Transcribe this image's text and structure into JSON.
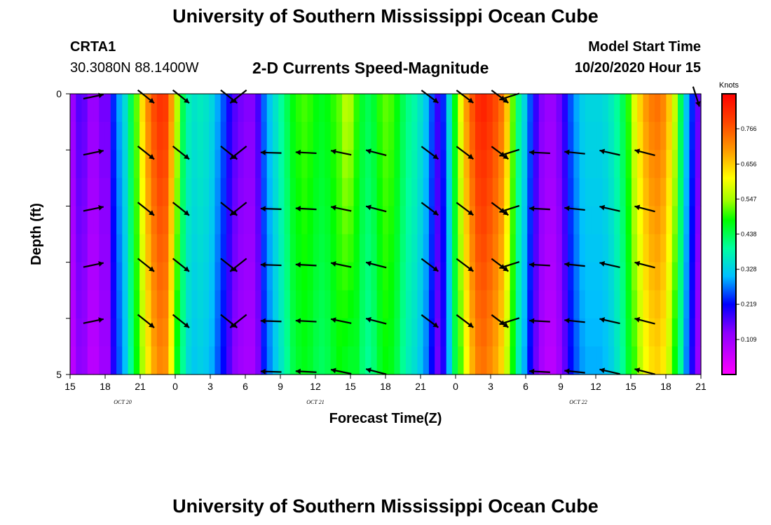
{
  "header": {
    "main_title": "University of Southern Mississippi Ocean Cube",
    "station_id": "CRTA1",
    "station_coords": "30.3080N 88.1400W",
    "plot_title": "2-D Currents Speed-Magnitude",
    "model_start_label": "Model Start Time",
    "model_start_value": "10/20/2020 Hour 15",
    "bottom_title": "University of Southern Mississippi Ocean Cube"
  },
  "chart_data": {
    "type": "heatmap",
    "title": "2-D Currents Speed-Magnitude",
    "xlabel": "Forecast Time(Z)",
    "ylabel": "Depth (ft)",
    "x_tick_labels": [
      "15",
      "18",
      "21",
      "0",
      "3",
      "6",
      "9",
      "12",
      "15",
      "18",
      "21",
      "0",
      "3",
      "6",
      "9",
      "12",
      "15",
      "18",
      "21"
    ],
    "x_hours": [
      0,
      3,
      6,
      9,
      12,
      15,
      18,
      21,
      24,
      27,
      30,
      33,
      36,
      39,
      42,
      45,
      48,
      51,
      54
    ],
    "date_labels": [
      {
        "text": "OCT 20",
        "hour": 4.5
      },
      {
        "text": "OCT 21",
        "hour": 21
      },
      {
        "text": "OCT 22",
        "hour": 43.5
      }
    ],
    "y_tick_labels": [
      {
        "value": 0,
        "text": "0"
      },
      {
        "value": 5,
        "text": "5"
      }
    ],
    "ylim": [
      0,
      5
    ],
    "y_inverted": true,
    "xlim_hours": [
      0,
      54
    ],
    "colorbar": {
      "label": "Knots",
      "ticks": [
        "0.766",
        "0.656",
        "0.547",
        "0.438",
        "0.328",
        "0.219",
        "0.109"
      ],
      "range": [
        0,
        0.875
      ]
    },
    "speed_by_hour": [
      0.1,
      0.15,
      0.14,
      0.1,
      0.1,
      0.13,
      0.13,
      0.22,
      0.28,
      0.33,
      0.42,
      0.5,
      0.6,
      0.68,
      0.74,
      0.77,
      0.76,
      0.66,
      0.52,
      0.42,
      0.36,
      0.34,
      0.35,
      0.34,
      0.32,
      0.28,
      0.24,
      0.19,
      0.15,
      0.13,
      0.12,
      0.12,
      0.16,
      0.25,
      0.3,
      0.34,
      0.38,
      0.42,
      0.46,
      0.48,
      0.49,
      0.48,
      0.46,
      0.45,
      0.46,
      0.48,
      0.5,
      0.52,
      0.51,
      0.48,
      0.44,
      0.42,
      0.44,
      0.48,
      0.5,
      0.49,
      0.46,
      0.42,
      0.39,
      0.37,
      0.34,
      0.3,
      0.24,
      0.17,
      0.22,
      0.33,
      0.46,
      0.56,
      0.66,
      0.73,
      0.78,
      0.79,
      0.77,
      0.74,
      0.7,
      0.62,
      0.5,
      0.39,
      0.32,
      0.24,
      0.17,
      0.12,
      0.1,
      0.1,
      0.13,
      0.18,
      0.24,
      0.28,
      0.31,
      0.32,
      0.32,
      0.32,
      0.33,
      0.35,
      0.38,
      0.42,
      0.48,
      0.55,
      0.61,
      0.66,
      0.69,
      0.7,
      0.68,
      0.62,
      0.53,
      0.42,
      0.3,
      0.22,
      0.14
    ],
    "speed_depth_taper": [
      0.04,
      0.03,
      0.02,
      0.01,
      0.0,
      -0.01,
      -0.02,
      -0.03,
      -0.04,
      -0.05
    ],
    "vector_rows_depth": [
      0.05,
      1.05,
      2.05,
      3.05,
      4.05,
      4.95
    ],
    "vector_columns": [
      {
        "hour": 2.0,
        "dir": [
          0.96,
          -0.2
        ],
        "rows": [
          0,
          1,
          2,
          3,
          4
        ]
      },
      {
        "hour": 6.5,
        "dir": [
          0.78,
          0.62
        ],
        "rows": [
          0,
          1,
          2,
          3,
          4
        ]
      },
      {
        "hour": 9.5,
        "dir": [
          0.78,
          0.62
        ],
        "rows": [
          0,
          1,
          2,
          3,
          4
        ]
      },
      {
        "hour": 13.6,
        "dir": [
          0.78,
          0.62
        ],
        "rows": [
          0,
          1,
          2,
          3,
          4
        ]
      },
      {
        "hour": 14.4,
        "dir": [
          -0.78,
          0.62
        ],
        "rows": [
          0,
          1,
          2,
          3,
          4
        ]
      },
      {
        "hour": 17.2,
        "dir": [
          -0.99,
          -0.03
        ],
        "rows": [
          1,
          2,
          3,
          4,
          5
        ]
      },
      {
        "hour": 20.2,
        "dir": [
          -0.99,
          -0.05
        ],
        "rows": [
          1,
          2,
          3,
          4,
          5
        ]
      },
      {
        "hour": 23.2,
        "dir": [
          -0.97,
          -0.2
        ],
        "rows": [
          1,
          2,
          3,
          4,
          5
        ]
      },
      {
        "hour": 26.2,
        "dir": [
          -0.97,
          -0.25
        ],
        "rows": [
          1,
          2,
          3,
          4,
          5
        ]
      },
      {
        "hour": 30.8,
        "dir": [
          0.8,
          0.6
        ],
        "rows": [
          0,
          1,
          2,
          3,
          4
        ]
      },
      {
        "hour": 33.8,
        "dir": [
          0.8,
          0.6
        ],
        "rows": [
          0,
          1,
          2,
          3,
          4
        ]
      },
      {
        "hour": 36.8,
        "dir": [
          0.8,
          0.6
        ],
        "rows": [
          0,
          1,
          2,
          3,
          4
        ]
      },
      {
        "hour": 37.6,
        "dir": [
          -0.95,
          0.3
        ],
        "rows": [
          0,
          1,
          2,
          3,
          4
        ]
      },
      {
        "hour": 40.2,
        "dir": [
          -0.99,
          -0.05
        ],
        "rows": [
          1,
          2,
          3,
          4,
          5
        ]
      },
      {
        "hour": 43.2,
        "dir": [
          -0.98,
          -0.1
        ],
        "rows": [
          1,
          2,
          3,
          4,
          5
        ]
      },
      {
        "hour": 46.2,
        "dir": [
          -0.97,
          -0.22
        ],
        "rows": [
          1,
          2,
          3,
          4,
          5
        ]
      },
      {
        "hour": 49.2,
        "dir": [
          -0.97,
          -0.25
        ],
        "rows": [
          1,
          2,
          3,
          4,
          5
        ]
      },
      {
        "hour": 53.6,
        "dir": [
          0.3,
          0.95
        ],
        "rows": [
          0
        ]
      }
    ]
  }
}
